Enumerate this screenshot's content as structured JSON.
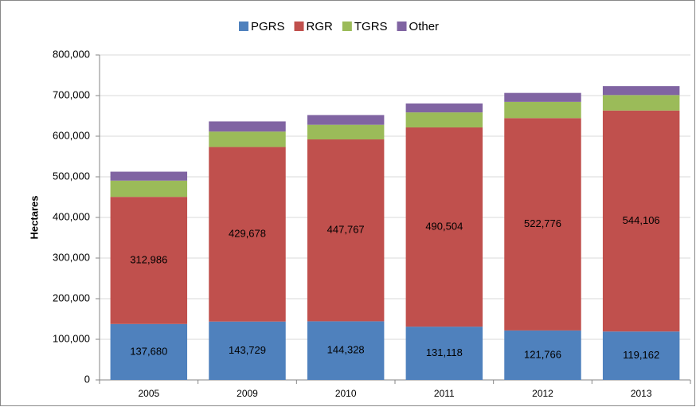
{
  "chart_data": {
    "type": "stacked-bar",
    "y_label": "Hectares",
    "categories": [
      "2005",
      "2009",
      "2010",
      "2011",
      "2012",
      "2013"
    ],
    "series": [
      {
        "name": "PGRS",
        "color": "#4f81bd",
        "values": [
          137680,
          143729,
          144328,
          131118,
          121766,
          119162
        ],
        "value_labels": [
          "137,680",
          "143,729",
          "144,328",
          "131,118",
          "121,766",
          "119,162"
        ]
      },
      {
        "name": "RGR",
        "color": "#c0504d",
        "values": [
          312986,
          429678,
          447767,
          490504,
          522776,
          544106
        ],
        "value_labels": [
          "312,986",
          "429,678",
          "447,767",
          "490,504",
          "522,776",
          "544,106"
        ]
      },
      {
        "name": "TGRS",
        "color": "#9bbb59",
        "values": [
          40000,
          38000,
          36000,
          37000,
          40000,
          38000
        ]
      },
      {
        "name": "Other",
        "color": "#8064a2",
        "values": [
          22000,
          25000,
          24000,
          22000,
          22000,
          22000
        ]
      }
    ],
    "ylim": [
      0,
      800000
    ],
    "yticks": [
      0,
      {
        "value": 100000,
        "label": "100,000"
      },
      {
        "value": 200000,
        "label": "200,000"
      },
      {
        "value": 300000,
        "label": "300,000"
      },
      {
        "value": 400000,
        "label": "400,000"
      },
      {
        "value": 500000,
        "label": "500,000"
      },
      {
        "value": 600000,
        "label": "600,000"
      },
      {
        "value": 700000,
        "label": "700,000"
      },
      {
        "value": 800000,
        "label": "800,000"
      }
    ],
    "grid": true,
    "legend": "top"
  }
}
